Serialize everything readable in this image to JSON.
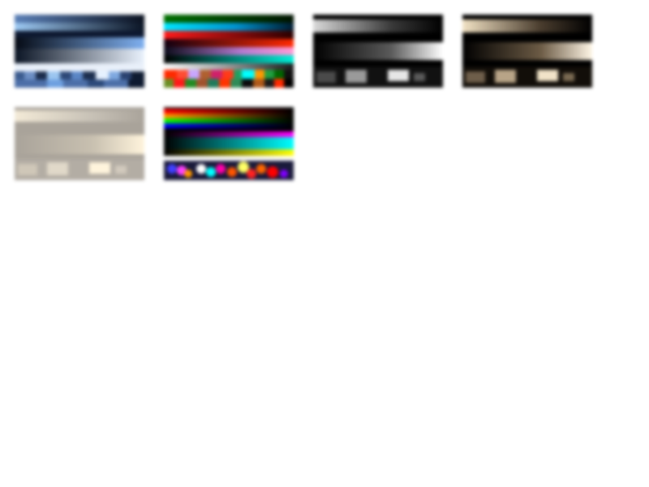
{
  "swatches": [
    {
      "kind": "blue-ramp",
      "colors": [
        "#3f5f93",
        "#8fb8e8",
        "#0a1426",
        "#5f8fd0",
        "#eef3fb",
        "#2a4476"
      ]
    },
    {
      "kind": "palette-stack",
      "colors": [
        "#006400",
        "#00cfff",
        "#ff1a1a",
        "#1c0f2a",
        "#ff99cc",
        "#00e6cc",
        "#ffffff",
        "#ff2a00",
        "#228b22",
        "#a0522d"
      ]
    },
    {
      "kind": "grey-ramp",
      "colors": [
        "#000000",
        "#d9d9d9",
        "#5a5a5a",
        "#ffffff"
      ]
    },
    {
      "kind": "sepia-ramp",
      "colors": [
        "#000000",
        "#f2e2c4",
        "#6b5a44",
        "#fff6e6"
      ]
    },
    {
      "kind": "light-sepia-ramp",
      "colors": [
        "#f0e6d2",
        "#a9a39a",
        "#fff4dc",
        "#d9d2c4"
      ]
    },
    {
      "kind": "rainbow-ramp",
      "colors": [
        "#ff0000",
        "#ff9900",
        "#00ff00",
        "#0000ff",
        "#ff00ff",
        "#00ffff",
        "#ffff00",
        "#ffffff"
      ]
    }
  ]
}
